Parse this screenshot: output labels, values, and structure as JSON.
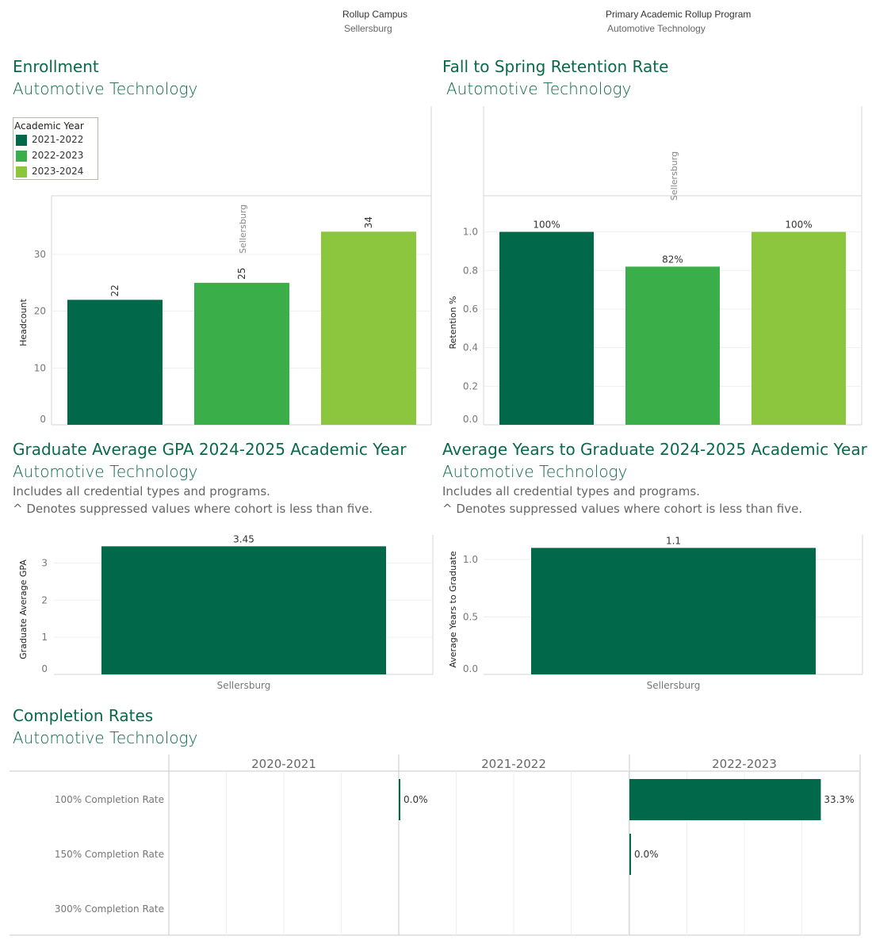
{
  "filters": [
    {
      "title": "Rollup Campus",
      "value": "Sellersburg"
    },
    {
      "title": "Primary Academic Rollup Program",
      "value": "Automotive Technology"
    }
  ],
  "colors": {
    "c1": "#02684a",
    "c2": "#3aae48",
    "c3": "#8cc63f",
    "title": "#0a6a47"
  },
  "enrollment": {
    "title": "Enrollment",
    "subtitle": "Automotive Technology",
    "panel_label": "Sellersburg",
    "legend_title": "Academic Year",
    "legend": [
      "2021-2022",
      "2022-2023",
      "2023-2024"
    ]
  },
  "retention": {
    "title": "Fall to Spring Retention Rate",
    "subtitle": "Automotive Technology",
    "panel_label": "Sellersburg"
  },
  "gpa": {
    "title": "Graduate Average GPA 2024-2025 Academic Year",
    "subtitle": "Automotive Technology",
    "note1": "Includes all credential types and programs.",
    "note2": "^ Denotes suppressed values where cohort is less than five."
  },
  "years": {
    "title": "Average Years to Graduate 2024-2025 Academic Year",
    "subtitle": "Automotive Technology",
    "note1": "Includes all credential types and programs.",
    "note2": "^ Denotes suppressed values where cohort is less than five."
  },
  "completion": {
    "title": "Completion Rates",
    "subtitle": "Automotive Technology"
  },
  "chart_data": [
    {
      "id": "enrollment",
      "type": "bar",
      "categories": [
        "2021-2022",
        "2022-2023",
        "2023-2024"
      ],
      "values": [
        22,
        25,
        34
      ],
      "labels": [
        "22",
        "25",
        "34"
      ],
      "ylabel": "Headcount",
      "ylim": [
        0,
        36
      ],
      "yticks": [
        0,
        10,
        20,
        30
      ],
      "grid": true
    },
    {
      "id": "retention",
      "type": "bar",
      "categories": [
        "2021-2022",
        "2022-2023",
        "2023-2024"
      ],
      "values": [
        1.0,
        0.82,
        1.0
      ],
      "labels": [
        "100%",
        "82%",
        "100%"
      ],
      "ylabel": "Retention %",
      "ylim": [
        0,
        1.06
      ],
      "yticks": [
        0.0,
        0.2,
        0.4,
        0.6,
        0.8,
        1.0
      ],
      "ytick_labels": [
        "0.0",
        "0.2",
        "0.4",
        "0.6",
        "0.8",
        "1.0"
      ],
      "grid": true
    },
    {
      "id": "gpa",
      "type": "bar",
      "categories": [
        "Sellersburg"
      ],
      "values": [
        3.45
      ],
      "labels": [
        "3.45"
      ],
      "ylabel": "Graduate Average GPA",
      "ylim": [
        0,
        3.5
      ],
      "yticks": [
        0,
        1,
        2,
        3
      ],
      "grid": true
    },
    {
      "id": "years",
      "type": "bar",
      "categories": [
        "Sellersburg"
      ],
      "values": [
        1.1
      ],
      "labels": [
        "1.1"
      ],
      "ylabel": "Average Years to Graduate",
      "ylim": [
        0,
        1.13
      ],
      "yticks": [
        0.0,
        0.5,
        1.0
      ],
      "ytick_labels": [
        "0.0",
        "0.5",
        "1.0"
      ],
      "grid": true
    },
    {
      "id": "completion",
      "type": "bar",
      "orientation": "horizontal",
      "columns": [
        "2020-2021",
        "2021-2022",
        "2022-2023"
      ],
      "rows": [
        "100% Completion Rate",
        "150% Completion Rate",
        "300% Completion Rate"
      ],
      "values": [
        [
          null,
          null,
          null
        ],
        [
          0.0,
          null,
          null
        ],
        [
          0.333,
          0.0,
          null
        ]
      ],
      "labels": [
        [
          null,
          null,
          null
        ],
        [
          "0.0%",
          null,
          null
        ],
        [
          "33.3%",
          "0.0%",
          null
        ]
      ],
      "xlim": [
        0,
        0.4
      ]
    }
  ]
}
